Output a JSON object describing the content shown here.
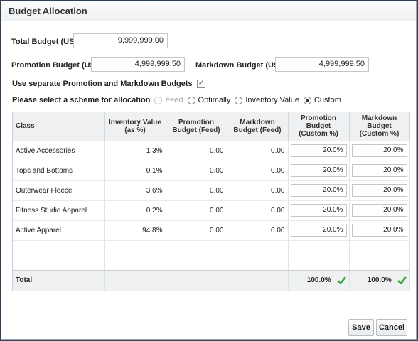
{
  "dialog": {
    "title": "Budget Allocation"
  },
  "total_budget": {
    "label": "Total Budget (USD)",
    "value": "9,999,999.00"
  },
  "promotion_budget": {
    "label": "Promotion Budget (USD)",
    "value": "4,999,999.50"
  },
  "markdown_budget": {
    "label": "Markdown Budget (USD)",
    "value": "4,999,999.50"
  },
  "separate_budgets": {
    "label": "Use separate Promotion and Markdown Budgets",
    "checked": true
  },
  "scheme": {
    "label": "Please select a scheme for allocation",
    "options": [
      {
        "label": "Feed",
        "disabled": true,
        "selected": false
      },
      {
        "label": "Optimally",
        "disabled": false,
        "selected": false
      },
      {
        "label": "Inventory Value",
        "disabled": false,
        "selected": false
      },
      {
        "label": "Custom",
        "disabled": false,
        "selected": true
      }
    ]
  },
  "table": {
    "headers": {
      "class": "Class",
      "inventory": "Inventory Value (as %)",
      "promo_feed": "Promotion Budget (Feed)",
      "markdown_feed": "Markdown Budget (Feed)",
      "promo_custom": "Promotion Budget (Custom %)",
      "markdown_custom": "Markdown Budget (Custom %)"
    },
    "rows": [
      {
        "class": "Active Accessories",
        "inventory": "1.3%",
        "promo_feed": "0.00",
        "markdown_feed": "0.00",
        "promo_custom": "20.0%",
        "markdown_custom": "20.0%"
      },
      {
        "class": "Tops and Bottoms",
        "inventory": "0.1%",
        "promo_feed": "0.00",
        "markdown_feed": "0.00",
        "promo_custom": "20.0%",
        "markdown_custom": "20.0%"
      },
      {
        "class": "Outerwear Fleece",
        "inventory": "3.6%",
        "promo_feed": "0.00",
        "markdown_feed": "0.00",
        "promo_custom": "20.0%",
        "markdown_custom": "20.0%"
      },
      {
        "class": "Fitness Studio Apparel",
        "inventory": "0.2%",
        "promo_feed": "0.00",
        "markdown_feed": "0.00",
        "promo_custom": "20.0%",
        "markdown_custom": "20.0%"
      },
      {
        "class": "Active Apparel",
        "inventory": "94.8%",
        "promo_feed": "0.00",
        "markdown_feed": "0.00",
        "promo_custom": "20.0%",
        "markdown_custom": "20.0%"
      }
    ],
    "total": {
      "label": "Total",
      "promo_custom": "100.0%",
      "markdown_custom": "100.0%"
    }
  },
  "buttons": {
    "save": "Save",
    "cancel": "Cancel"
  },
  "colors": {
    "check_green": "#3aa53a",
    "header_bg": "#eef0f2"
  }
}
